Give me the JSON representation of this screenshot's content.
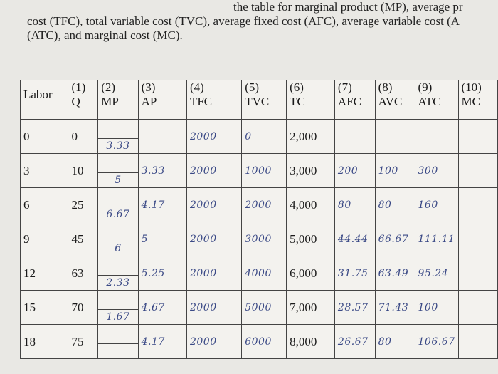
{
  "header": {
    "lines": [
      "the table for marginal product (MP), average pr",
      "cost (TFC), total variable cost (TVC), average fixed cost (AFC), average variable cost (A",
      "(ATC), and marginal cost (MC)."
    ]
  },
  "table": {
    "columns": [
      {
        "label": "Labor"
      },
      {
        "number": "(1)",
        "label": "Q"
      },
      {
        "number": "(2)",
        "label": "MP"
      },
      {
        "number": "(3)",
        "label": "AP"
      },
      {
        "number": "(4)",
        "label": "TFC"
      },
      {
        "number": "(5)",
        "label": "TVC"
      },
      {
        "number": "(6)",
        "label": "TC"
      },
      {
        "number": "(7)",
        "label": "AFC"
      },
      {
        "number": "(8)",
        "label": "AVC"
      },
      {
        "number": "(9)",
        "label": "ATC"
      },
      {
        "number": "(10)",
        "label": "MC"
      }
    ],
    "rows": [
      [
        "0",
        "0",
        null,
        null,
        "2000",
        "0",
        "2,000",
        null,
        null,
        null,
        null
      ],
      [
        "3",
        "10",
        null,
        "3.33",
        "2000",
        "1000",
        "3,000",
        "200",
        "100",
        "300",
        null
      ],
      [
        "6",
        "25",
        null,
        "4.17",
        "2000",
        "2000",
        "4,000",
        "80",
        "80",
        "160",
        null
      ],
      [
        "9",
        "45",
        null,
        "5",
        "2000",
        "3000",
        "5,000",
        "44.44",
        "66.67",
        "111.11",
        null
      ],
      [
        "12",
        "63",
        null,
        "5.25",
        "2000",
        "4000",
        "6,000",
        "31.75",
        "63.49",
        "95.24",
        null
      ],
      [
        "15",
        "70",
        null,
        "4.67",
        "2000",
        "5000",
        "7,000",
        "28.57",
        "71.43",
        "100",
        null
      ],
      [
        "18",
        "75",
        null,
        "4.17",
        "2000",
        "6000",
        "8,000",
        "26.67",
        "80",
        "106.67",
        null
      ]
    ],
    "marginal_product": [
      "3.33",
      "5",
      "6.67",
      "6",
      "2.33",
      "1.67"
    ],
    "handwritten_columns": [
      2,
      3,
      4,
      5,
      7,
      8,
      9
    ]
  }
}
